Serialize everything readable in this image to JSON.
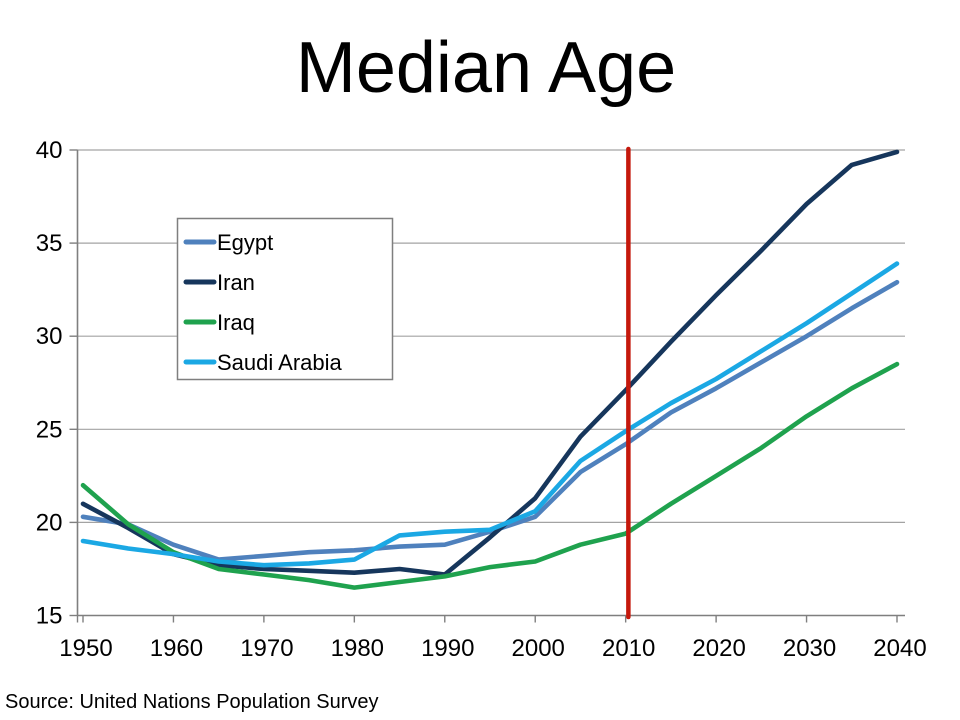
{
  "title": "Median Age",
  "source_note": "Source: United Nations Population Survey",
  "colors": {
    "egypt": "#4F81BD",
    "iran": "#16365C",
    "iraq": "#1FA24E",
    "saudi_arabia": "#1BA8E4",
    "marker_line": "#C5180C",
    "gridline": "#A3A3A3",
    "axis": "#7F7F7F",
    "legend_border": "#7F7F7F",
    "text": "#000000"
  },
  "legend": {
    "items": [
      "Egypt",
      "Iran",
      "Iraq",
      "Saudi Arabia"
    ]
  },
  "chart_data": {
    "type": "line",
    "title": "Median Age",
    "xlabel": "",
    "ylabel": "",
    "x": [
      1950,
      1955,
      1960,
      1965,
      1970,
      1975,
      1980,
      1985,
      1990,
      1995,
      2000,
      2005,
      2010,
      2015,
      2020,
      2025,
      2030,
      2035,
      2040
    ],
    "x_ticks": [
      1950,
      1960,
      1970,
      1980,
      1990,
      2000,
      2010,
      2020,
      2030,
      2040
    ],
    "y_ticks": [
      15,
      20,
      25,
      30,
      35,
      40
    ],
    "ylim": [
      15,
      40
    ],
    "xlim": [
      1950,
      2040
    ],
    "grid": "horizontal-only",
    "legend_position": "upper-left-inside",
    "series": [
      {
        "name": "Egypt",
        "color": "#4F81BD",
        "values": [
          20.3,
          19.9,
          18.8,
          18.0,
          18.2,
          18.4,
          18.5,
          18.7,
          18.8,
          19.5,
          20.3,
          22.7,
          24.2,
          25.9,
          27.2,
          28.6,
          30.0,
          31.5,
          32.9
        ]
      },
      {
        "name": "Iran",
        "color": "#16365C",
        "values": [
          21.0,
          19.7,
          18.3,
          17.7,
          17.5,
          17.4,
          17.3,
          17.5,
          17.2,
          19.2,
          21.3,
          24.6,
          27.1,
          29.7,
          32.2,
          34.6,
          37.1,
          39.2,
          39.9
        ]
      },
      {
        "name": "Iraq",
        "color": "#1FA24E",
        "values": [
          22.0,
          19.9,
          18.4,
          17.5,
          17.2,
          16.9,
          16.5,
          16.8,
          17.1,
          17.6,
          17.9,
          18.8,
          19.4,
          21.0,
          22.5,
          24.0,
          25.7,
          27.2,
          28.5
        ]
      },
      {
        "name": "Saudi Arabia",
        "color": "#1BA8E4",
        "values": [
          19.0,
          18.6,
          18.3,
          17.9,
          17.7,
          17.8,
          18.0,
          19.3,
          19.5,
          19.6,
          20.6,
          23.3,
          24.9,
          26.4,
          27.7,
          29.2,
          30.7,
          32.3,
          33.9
        ]
      }
    ],
    "marker_line": {
      "year": 2010.3,
      "color": "#C5180C"
    }
  }
}
